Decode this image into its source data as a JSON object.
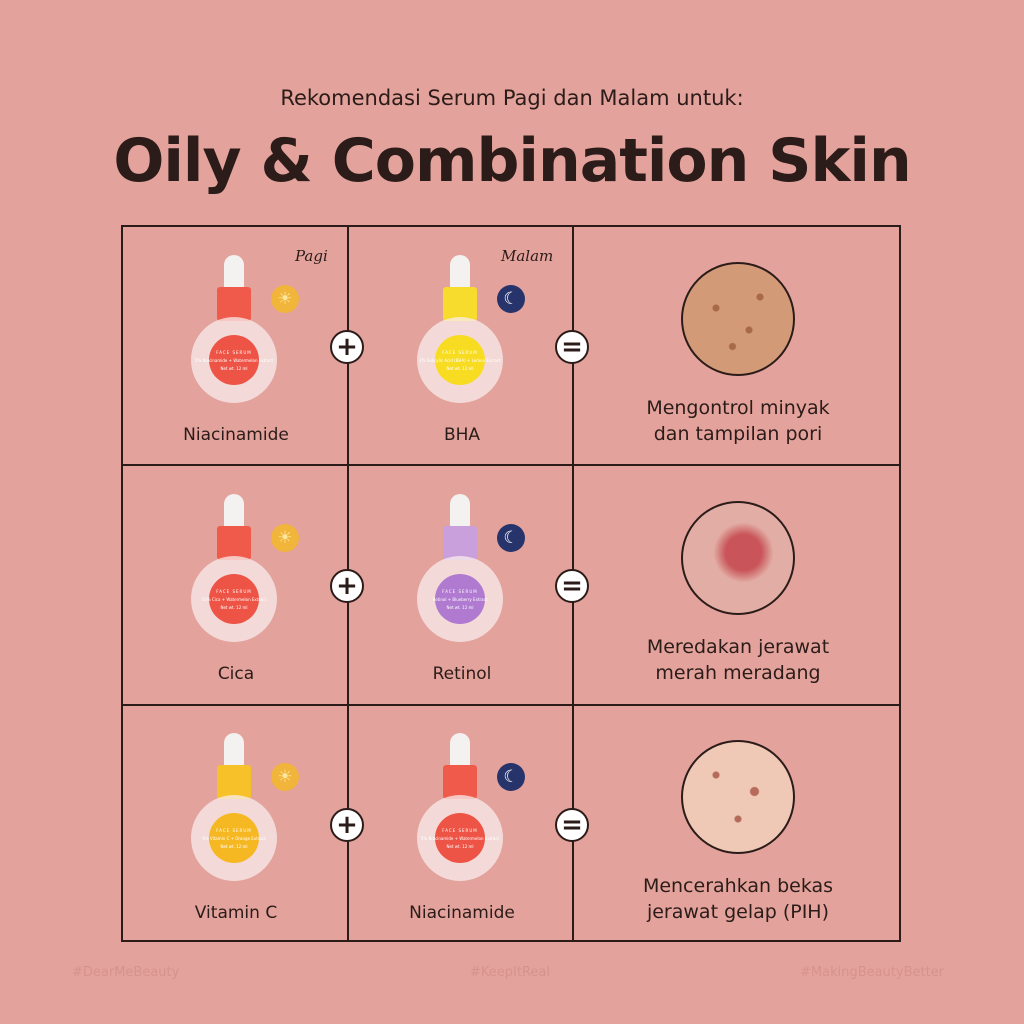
{
  "header": {
    "subtitle": "Rekomendasi Serum Pagi dan Malam untuk:",
    "title": "Oily & Combination Skin"
  },
  "annotations": {
    "morning": "Pagi",
    "night": "Malam"
  },
  "operators": {
    "plus": "+",
    "equals": "="
  },
  "rows": [
    {
      "morning": {
        "name": "Niacinamide",
        "brand": "FACE SERUM",
        "ingredients": "5% Niacinamide + Watermelon Extract",
        "volume": "Net wt. 12 ml",
        "collar": "#ef5a4a",
        "label": "#ee5446"
      },
      "night": {
        "name": "BHA",
        "brand": "FACE SERUM",
        "ingredients": "2% Salicylic Acid (BHA) + Lemon Extract",
        "volume": "Net wt. 12 ml",
        "collar": "#f7dc2e",
        "label": "#f8dc22"
      },
      "result": [
        "Mengontrol minyak",
        "dan tampilan pori"
      ],
      "skin_color": "#d39a77"
    },
    {
      "morning": {
        "name": "Cica",
        "brand": "FACE SERUM",
        "ingredients": "10% Cica + Watermelon Extract",
        "volume": "Net wt. 12 ml",
        "collar": "#ef5a4a",
        "label": "#ee5446"
      },
      "night": {
        "name": "Retinol",
        "brand": "FACE SERUM",
        "ingredients": "Retinol + Blueberry Extract",
        "volume": "Net wt. 12 ml",
        "collar": "#c9a0dc",
        "label": "#b07ad0"
      },
      "result": [
        "Meredakan jerawat",
        "merah meradang"
      ],
      "skin_color": "#e2ada4"
    },
    {
      "morning": {
        "name": "Vitamin C",
        "brand": "FACE SERUM",
        "ingredients": "6% Vitamin C + Orange Extract",
        "volume": "Net wt. 12 ml",
        "collar": "#f7c12a",
        "label": "#f6b822"
      },
      "night": {
        "name": "Niacinamide",
        "brand": "FACE SERUM",
        "ingredients": "5% Niacinamide + Watermelon Extract",
        "volume": "Net wt. 12 ml",
        "collar": "#ef5a4a",
        "label": "#ee5446"
      },
      "result": [
        "Mencerahkan bekas",
        "jerawat gelap (PIH)"
      ],
      "skin_color": "#efc8b6"
    }
  ],
  "footer": {
    "tags": [
      "#DearMeBeauty",
      "#KeepItReal",
      "#MakingBeautyBetter"
    ]
  }
}
